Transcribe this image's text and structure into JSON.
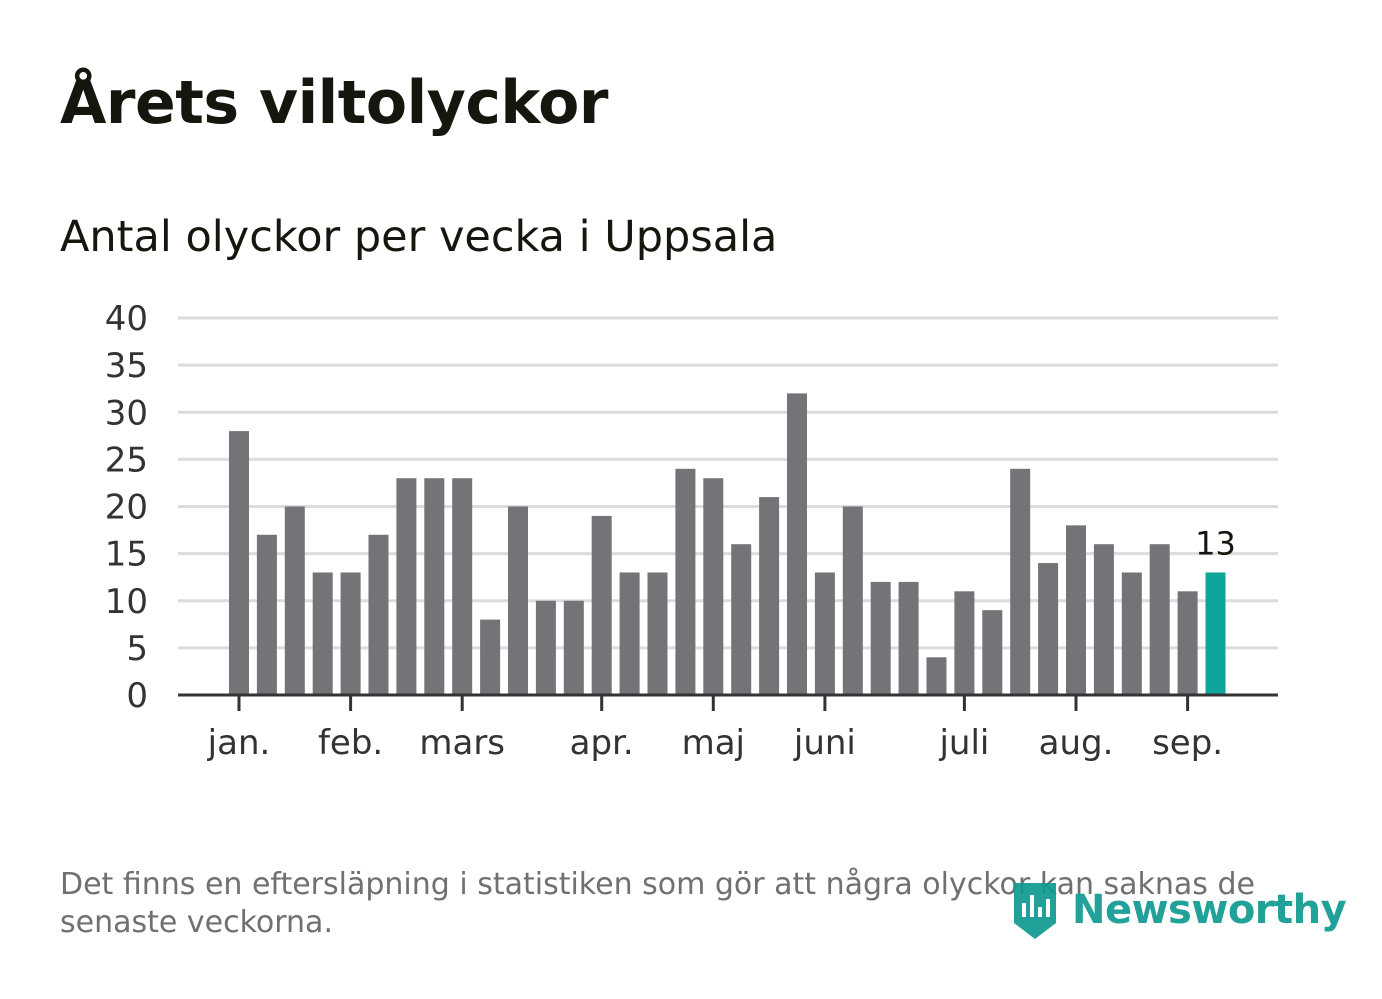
{
  "title": "Årets viltolyckor",
  "subtitle": "Antal olyckor per vecka i Uppsala",
  "footnote": "Det finns en eftersläpning i statistiken som gör att några olyckor kan saknas de senaste veckorna.",
  "logo": {
    "text": "Newsworthy",
    "icon": "newsworthy-logo-icon"
  },
  "colors": {
    "bar": "#737378",
    "highlight": "#10a59a",
    "grid": "#dcdcdc",
    "axis": "#333333",
    "text": "#16160f",
    "muted": "#707070"
  },
  "chart_data": {
    "type": "bar",
    "title": "Årets viltolyckor",
    "subtitle": "Antal olyckor per vecka i Uppsala",
    "xlabel": "",
    "ylabel": "",
    "ylim": [
      0,
      40
    ],
    "yticks": [
      0,
      5,
      10,
      15,
      20,
      25,
      30,
      35,
      40
    ],
    "grid": true,
    "month_labels": [
      "jan.",
      "feb.",
      "mars",
      "apr.",
      "maj",
      "juni",
      "juli",
      "aug.",
      "sep."
    ],
    "month_label_weeks": [
      1,
      5,
      9,
      14,
      18,
      22,
      27,
      31,
      35
    ],
    "weeks": [
      1,
      2,
      3,
      4,
      5,
      6,
      7,
      8,
      9,
      10,
      11,
      12,
      13,
      14,
      15,
      16,
      17,
      18,
      19,
      20,
      21,
      22,
      23,
      24,
      25,
      26,
      27,
      28,
      29,
      30,
      31,
      32,
      33,
      34,
      35,
      36
    ],
    "values": [
      28,
      17,
      20,
      13,
      13,
      17,
      23,
      23,
      23,
      8,
      20,
      10,
      10,
      19,
      13,
      13,
      24,
      23,
      16,
      21,
      32,
      13,
      20,
      12,
      12,
      4,
      11,
      9,
      24,
      14,
      18,
      16,
      13,
      16,
      11,
      13
    ],
    "highlight_last": true,
    "annotation": {
      "week": 36,
      "label": "13"
    }
  }
}
